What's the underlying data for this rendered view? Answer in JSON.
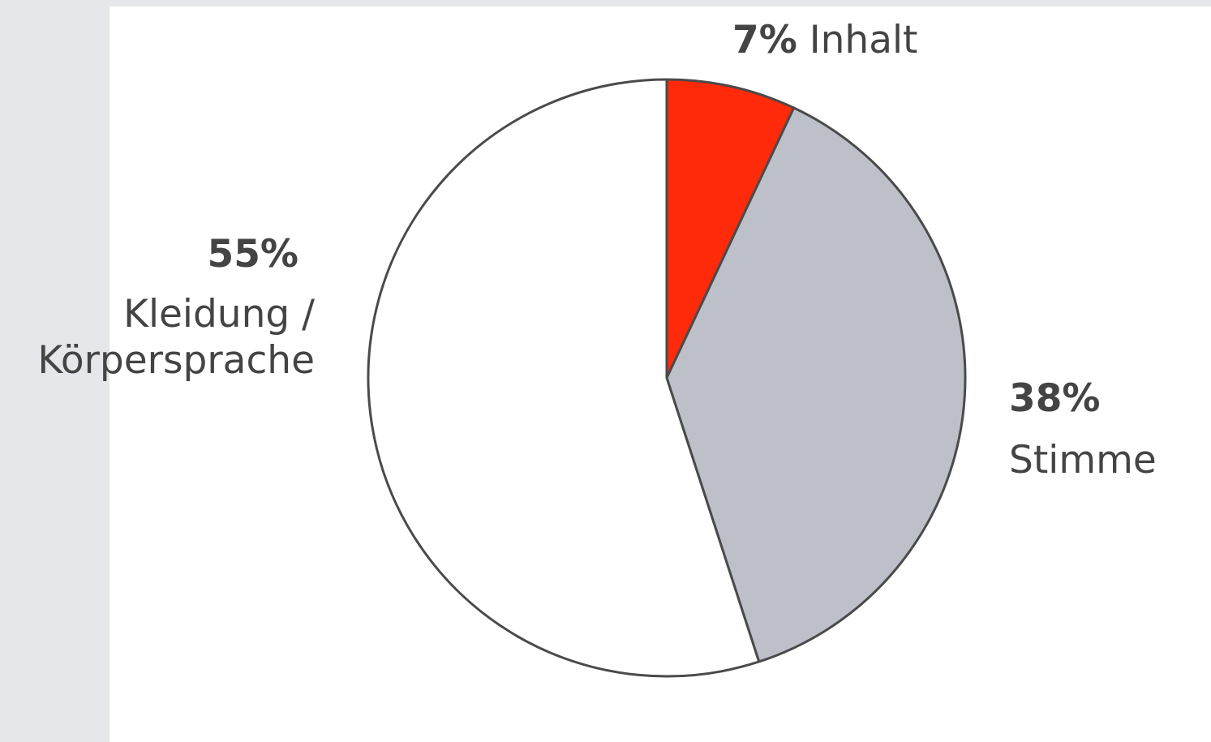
{
  "chart_data": {
    "type": "pie",
    "start": "top",
    "direction": "clockwise",
    "slices": [
      {
        "label": "Inhalt",
        "value": 7,
        "value_label": "7%",
        "color": "#ff2a0a"
      },
      {
        "label": "Stimme",
        "value": 38,
        "value_label": "38%",
        "color": "#bdc0c9"
      },
      {
        "label_lines": [
          "Kleidung /",
          "Körpersprache"
        ],
        "value": 55,
        "value_label": "55%",
        "color": "#ffffff"
      }
    ],
    "outline_color": "#4a4a4a"
  },
  "colors": {
    "page_background": "#e6e7eb",
    "panel_background": "#ffffff",
    "text": "#444444"
  }
}
